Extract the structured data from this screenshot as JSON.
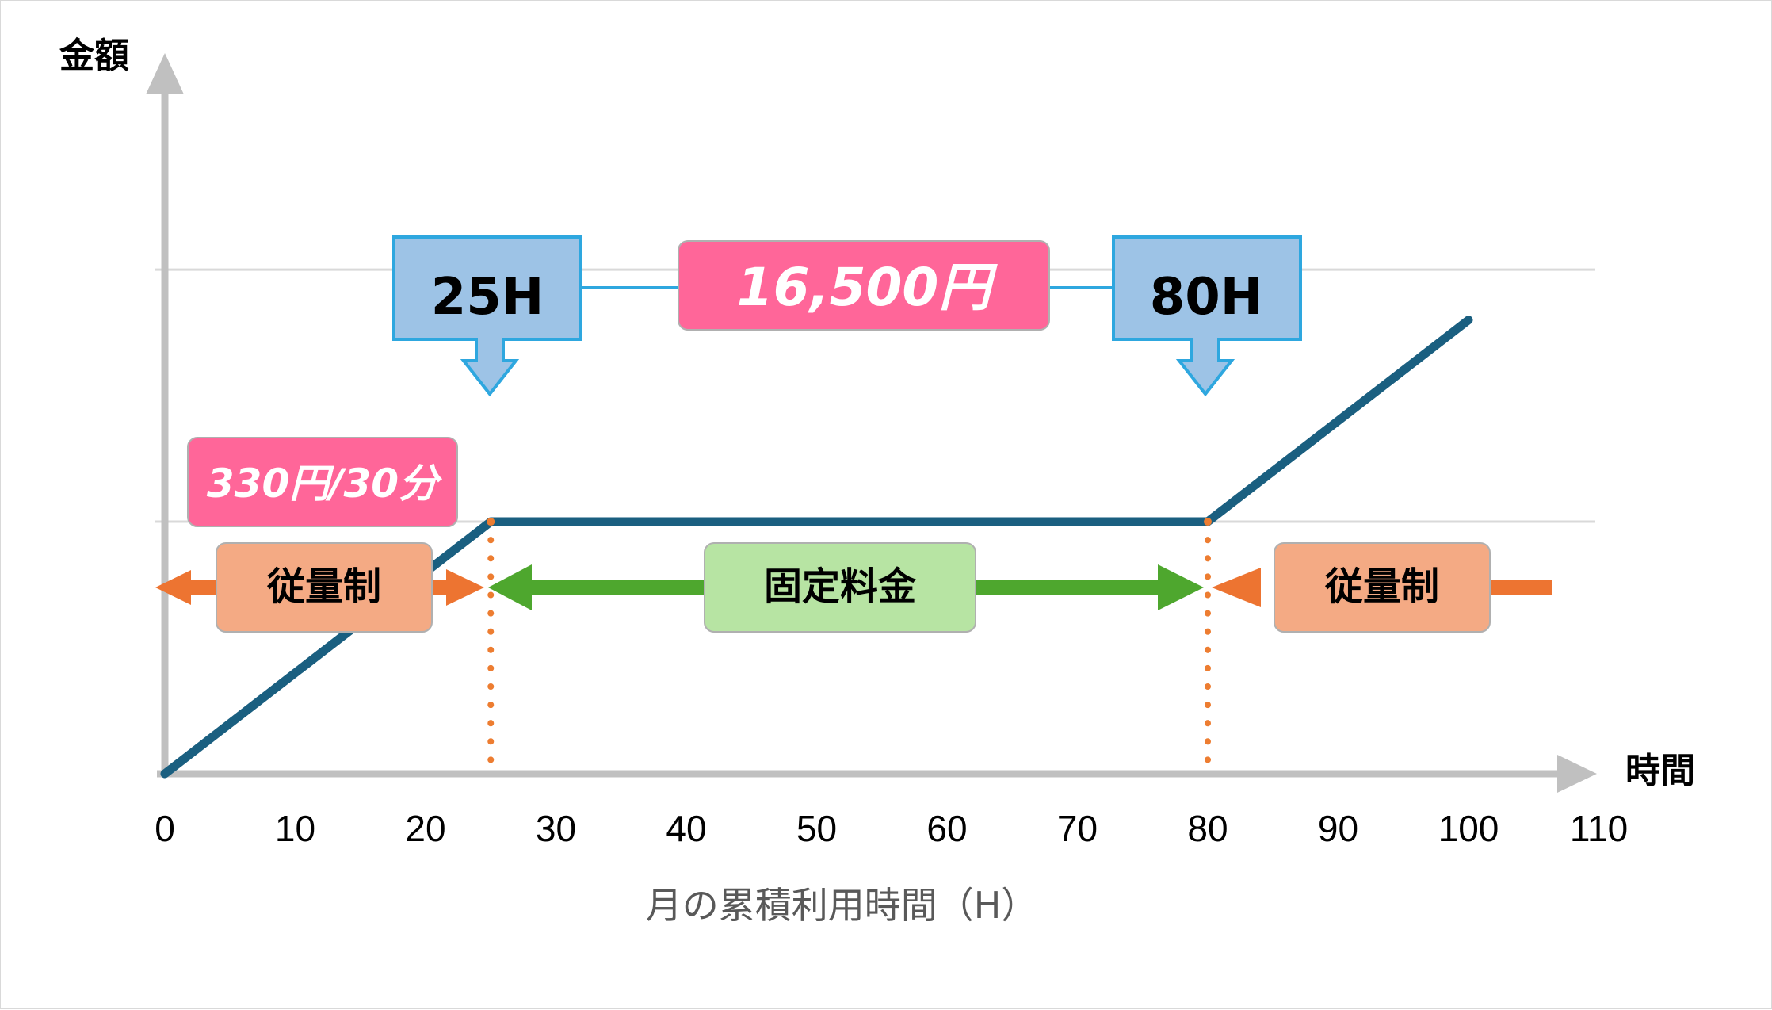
{
  "chart_data": {
    "type": "line",
    "title": "",
    "xlabel": "月の累積利用時間（H）",
    "x_axis_title": "時間",
    "y_axis_title": "金額",
    "xlim": [
      0,
      110
    ],
    "x_ticks": [
      0,
      10,
      20,
      30,
      40,
      50,
      60,
      70,
      80,
      90,
      100,
      110
    ],
    "grid": "horizontal",
    "series": [
      {
        "x": [
          0,
          25,
          80,
          100
        ],
        "y": [
          0,
          16500,
          16500,
          29700
        ],
        "color": "#1a5f80"
      }
    ],
    "annotations": {
      "start_hour_label": "25H",
      "end_hour_label": "80H",
      "fixed_price_label": "16,500円",
      "rate_label": "330円/30分",
      "left_zone_label": "従量制",
      "middle_zone_label": "固定料金",
      "right_zone_label": "従量制"
    },
    "colors": {
      "line": "#1a5f80",
      "hour_box": "#9dc3e6",
      "hour_box_border": "#2ea7df",
      "price_box": "#ff6699",
      "metered": "#f4aa84",
      "metered_arrow": "#ed7431",
      "fixed": "#b7e4a3",
      "fixed_arrow": "#4ea72e",
      "guide": "#ed7d31"
    }
  }
}
